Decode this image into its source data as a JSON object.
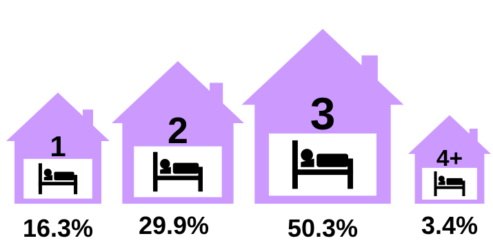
{
  "colors": {
    "house": "#cc9aff",
    "text": "#000000",
    "panel": "#ffffff"
  },
  "chart_data": {
    "type": "bar",
    "title": "",
    "categories": [
      "1",
      "2",
      "3",
      "4+"
    ],
    "values": [
      16.3,
      29.9,
      50.3,
      3.4
    ],
    "value_labels": [
      "16.3%",
      "29.9%",
      "50.3%",
      "3.4%"
    ],
    "icon": "bed-icon",
    "ylim": [
      0,
      100
    ]
  }
}
